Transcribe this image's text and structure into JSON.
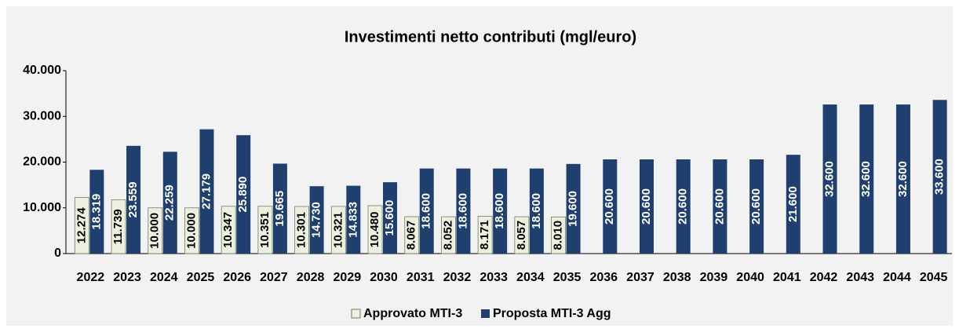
{
  "chart_data": {
    "type": "bar",
    "title": "Investimenti netto contributi (mgl/euro)",
    "categories": [
      "2022",
      "2023",
      "2024",
      "2025",
      "2026",
      "2027",
      "2028",
      "2029",
      "2030",
      "2031",
      "2032",
      "2033",
      "2034",
      "2035",
      "2036",
      "2037",
      "2038",
      "2039",
      "2040",
      "2041",
      "2042",
      "2043",
      "2044",
      "2045"
    ],
    "series": [
      {
        "name": "Approvato MTI-3",
        "color": "#ebf1de",
        "values": [
          12274,
          11739,
          10000,
          10000,
          10347,
          10351,
          10301,
          10321,
          10480,
          8067,
          8052,
          8171,
          8057,
          8010,
          null,
          null,
          null,
          null,
          null,
          null,
          null,
          null,
          null,
          null
        ],
        "value_labels": [
          "12.274",
          "11.739",
          "10.000",
          "10.000",
          "10.347",
          "10.351",
          "10.301",
          "10.321",
          "10.480",
          "8.067",
          "8.052",
          "8.171",
          "8.057",
          "8.010",
          null,
          null,
          null,
          null,
          null,
          null,
          null,
          null,
          null,
          null
        ]
      },
      {
        "name": "Proposta MTI-3 Agg",
        "color": "#1f3f6e",
        "values": [
          18319,
          23559,
          22259,
          27179,
          25890,
          19665,
          14730,
          14833,
          15600,
          18600,
          18600,
          18600,
          18600,
          19600,
          20600,
          20600,
          20600,
          20600,
          20600,
          21600,
          32600,
          32600,
          32600,
          33600
        ],
        "value_labels": [
          "18.319",
          "23.559",
          "22.259",
          "27.179",
          "25.890",
          "19.665",
          "14.730",
          "14.833",
          "15.600",
          "18.600",
          "18.600",
          "18.600",
          "18.600",
          "19.600",
          "20.600",
          "20.600",
          "20.600",
          "20.600",
          "20.600",
          "21.600",
          "32.600",
          "32.600",
          "32.600",
          "33.600"
        ]
      }
    ],
    "ylim": [
      0,
      40000
    ],
    "yticks": [
      0,
      {
        "value": 10000,
        "label": "10.000"
      },
      {
        "value": 20000,
        "label": "20.000"
      },
      {
        "value": 30000,
        "label": "30.000"
      },
      {
        "value": 40000,
        "label": "40.000"
      }
    ],
    "grid": false
  }
}
